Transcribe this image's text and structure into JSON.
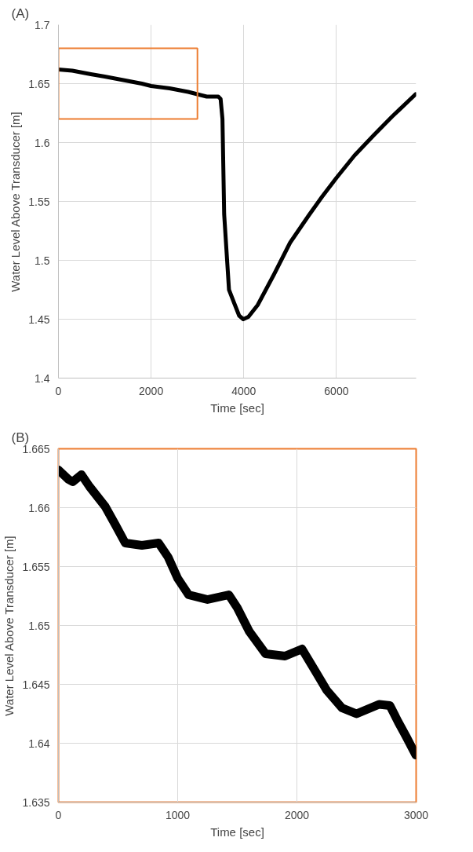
{
  "chart_data": [
    {
      "type": "line",
      "title": "(A)",
      "xlabel": "Time [sec]",
      "ylabel": "Water Level Above Transducer [m]",
      "xlim": [
        0,
        7720
      ],
      "ylim": [
        1.4,
        1.7
      ],
      "xticks": [
        0,
        2000,
        4000,
        6000
      ],
      "yticks": [
        1.4,
        1.45,
        1.5,
        1.55,
        1.6,
        1.65,
        1.7
      ],
      "grid": true,
      "marker": "none",
      "line_style": "solid",
      "x": [
        0,
        300,
        700,
        1000,
        1400,
        1800,
        2000,
        2400,
        2800,
        3000,
        3200,
        3450,
        3500,
        3540,
        3577,
        3681,
        3800,
        3900,
        3990,
        4100,
        4300,
        4652,
        5000,
        5400,
        5690,
        6000,
        6390,
        6800,
        7200,
        7708
      ],
      "series": [
        {
          "color": "#000000",
          "values": [
            1.662,
            1.661,
            1.658,
            1.656,
            1.653,
            1.65,
            1.648,
            1.646,
            1.643,
            1.641,
            1.639,
            1.639,
            1.637,
            1.62,
            1.539,
            1.475,
            1.463,
            1.453,
            1.45,
            1.452,
            1.462,
            1.488,
            1.515,
            1.538,
            1.554,
            1.57,
            1.589,
            1.606,
            1.622,
            1.641
          ]
        }
      ]
    },
    {
      "type": "line",
      "title": "(B)",
      "xlabel": "Time [sec]",
      "ylabel": "Water Level Above Transducer [m]",
      "xlim": [
        0,
        3000
      ],
      "ylim": [
        1.635,
        1.665
      ],
      "xticks": [
        0,
        1000,
        2000,
        3000
      ],
      "yticks": [
        1.635,
        1.64,
        1.645,
        1.65,
        1.655,
        1.66,
        1.665
      ],
      "grid": true,
      "marker": "none",
      "line_style": "solid",
      "x": [
        0,
        84,
        120,
        193,
        260,
        392,
        480,
        560,
        700,
        840,
        920,
        1000,
        1092,
        1250,
        1429,
        1500,
        1600,
        1737,
        1900,
        2043,
        2150,
        2250,
        2378,
        2500,
        2689,
        2780,
        2850,
        2920,
        2997
      ],
      "series": [
        {
          "color": "#000000",
          "values": [
            1.6632,
            1.6624,
            1.6622,
            1.6628,
            1.6618,
            1.6601,
            1.6585,
            1.657,
            1.6568,
            1.657,
            1.6558,
            1.654,
            1.6526,
            1.6522,
            1.6526,
            1.6515,
            1.6495,
            1.6476,
            1.6474,
            1.648,
            1.6462,
            1.6445,
            1.643,
            1.6425,
            1.6433,
            1.6432,
            1.6418,
            1.6405,
            1.639
          ]
        }
      ]
    }
  ]
}
